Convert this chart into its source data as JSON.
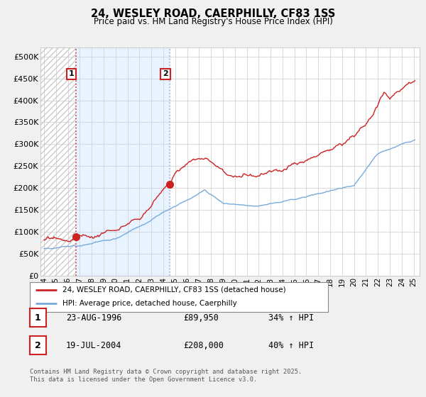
{
  "title": "24, WESLEY ROAD, CAERPHILLY, CF83 1SS",
  "subtitle": "Price paid vs. HM Land Registry's House Price Index (HPI)",
  "ylim": [
    0,
    520000
  ],
  "yticks": [
    0,
    50000,
    100000,
    150000,
    200000,
    250000,
    300000,
    350000,
    400000,
    450000,
    500000
  ],
  "xlim_start": 1993.7,
  "xlim_end": 2025.5,
  "xticks": [
    1994,
    1995,
    1996,
    1997,
    1998,
    1999,
    2000,
    2001,
    2002,
    2003,
    2004,
    2005,
    2006,
    2007,
    2008,
    2009,
    2010,
    2011,
    2012,
    2013,
    2014,
    2015,
    2016,
    2017,
    2018,
    2019,
    2020,
    2021,
    2022,
    2023,
    2024,
    2025
  ],
  "hpi_color": "#7aaadd",
  "price_color": "#cc2222",
  "purchase1_x": 1996.65,
  "purchase1_y": 89950,
  "purchase2_x": 2004.55,
  "purchase2_y": 208000,
  "shade_color": "#ddeeff",
  "hatch_color": "#cccccc",
  "legend_label_price": "24, WESLEY ROAD, CAERPHILLY, CF83 1SS (detached house)",
  "legend_label_hpi": "HPI: Average price, detached house, Caerphilly",
  "table_rows": [
    {
      "num": "1",
      "date": "23-AUG-1996",
      "price": "£89,950",
      "hpi": "34% ↑ HPI"
    },
    {
      "num": "2",
      "date": "19-JUL-2004",
      "price": "£208,000",
      "hpi": "40% ↑ HPI"
    }
  ],
  "footer": "Contains HM Land Registry data © Crown copyright and database right 2025.\nThis data is licensed under the Open Government Licence v3.0.",
  "background_color": "#f0f0f0",
  "plot_bg_color": "#ffffff",
  "grid_color": "#cccccc",
  "annotation_border": "#cc2222"
}
